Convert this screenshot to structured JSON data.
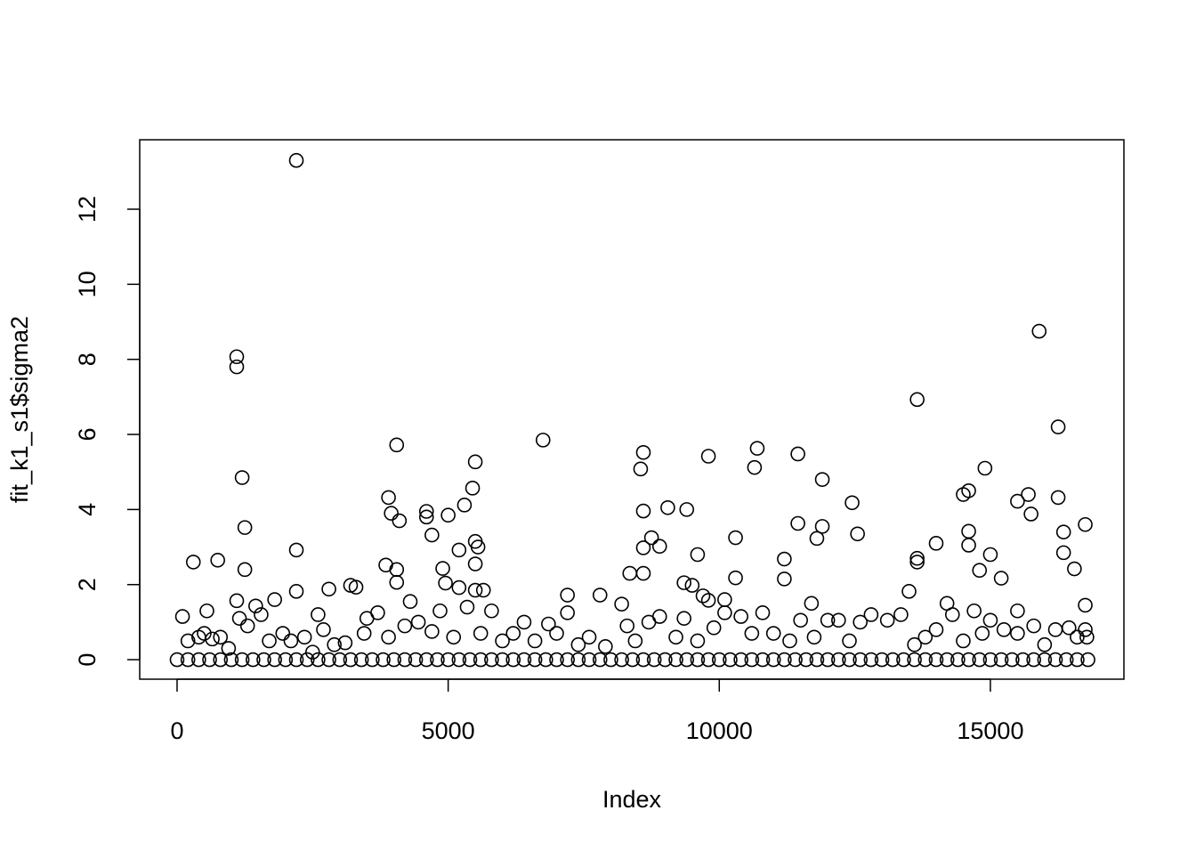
{
  "chart_data": {
    "type": "scatter",
    "x_label": "Index",
    "y_label": "fit_k1_s1$sigma2",
    "xlim": [
      -689,
      17463
    ],
    "ylim": [
      -0.52,
      13.85
    ],
    "xticks": [
      0,
      5000,
      10000,
      15000
    ],
    "yticks": [
      0,
      2,
      4,
      6,
      8,
      10,
      12
    ],
    "color": "#000000",
    "marker": "open-circle",
    "series": [
      {
        "x": [
          2200,
          1100,
          1100,
          15900,
          13650,
          16250,
          6750,
          4050,
          8600,
          8550,
          9800,
          10700,
          10650,
          11450,
          5500,
          5450,
          14900,
          1200,
          11900,
          14500,
          14600,
          15700,
          15500,
          15750,
          16250,
          3900,
          3950,
          4100,
          12450,
          9050,
          9400,
          8600,
          4600,
          4600,
          4700,
          5000,
          5300,
          11450,
          11900,
          11800,
          16750,
          1250,
          12550,
          14600,
          14600,
          16350,
          10300,
          8750,
          8900,
          8600,
          5500,
          5550,
          5200,
          2200,
          14000,
          13650,
          13650,
          15000,
          16350,
          9600,
          11200,
          300,
          750,
          3850,
          4050,
          1250,
          4900,
          5500,
          14800,
          16550,
          8350,
          8600,
          10300,
          11200,
          15200,
          9350,
          9500,
          4950,
          4050,
          5200,
          5500,
          5650,
          2200,
          3200,
          3300,
          2800,
          13500,
          1100,
          1800,
          1450,
          7200,
          7800,
          9700,
          9800,
          10100,
          11700,
          14200,
          16750,
          8200,
          100,
          550,
          2600,
          7200,
          15500
        ],
        "y": [
          13.3,
          8.07,
          7.8,
          8.75,
          6.93,
          6.2,
          5.85,
          5.72,
          5.52,
          5.08,
          5.42,
          5.63,
          5.12,
          5.48,
          5.27,
          4.57,
          5.1,
          4.85,
          4.8,
          4.4,
          4.5,
          4.4,
          4.22,
          3.88,
          4.32,
          4.32,
          3.9,
          3.7,
          4.18,
          4.05,
          4.0,
          3.96,
          3.95,
          3.8,
          3.32,
          3.85,
          4.12,
          3.63,
          3.55,
          3.23,
          3.6,
          3.52,
          3.35,
          3.42,
          3.05,
          3.4,
          3.25,
          3.25,
          3.02,
          2.98,
          3.15,
          3.0,
          2.92,
          2.92,
          3.1,
          2.7,
          2.6,
          2.8,
          2.85,
          2.8,
          2.68,
          2.6,
          2.65,
          2.52,
          2.4,
          2.4,
          2.43,
          2.55,
          2.38,
          2.42,
          2.3,
          2.3,
          2.18,
          2.15,
          2.17,
          2.05,
          1.98,
          2.04,
          2.06,
          1.92,
          1.85,
          1.85,
          1.82,
          1.98,
          1.93,
          1.88,
          1.82,
          1.57,
          1.6,
          1.43,
          1.72,
          1.72,
          1.7,
          1.58,
          1.6,
          1.5,
          1.5,
          1.45,
          1.48,
          1.15,
          1.3,
          1.2,
          1.25,
          1.3
        ]
      },
      {
        "x": [
          200,
          400,
          500,
          650,
          800,
          950,
          1150,
          1300,
          1550,
          1700,
          1950,
          2100,
          2350,
          2500,
          2700,
          2900,
          3100,
          3450,
          3500,
          3700,
          3900,
          4200,
          4300,
          4450,
          4700,
          4850,
          5100,
          5350,
          5600,
          5800,
          6000,
          6200,
          6400,
          6600,
          6850,
          7000,
          7400,
          7600,
          7900,
          8300,
          8450,
          8700,
          8900,
          9200,
          9350,
          9600,
          9900,
          10100,
          10400,
          10600,
          10800,
          11000,
          11300,
          11500,
          11750,
          12000,
          12200,
          12400,
          12600,
          12800,
          13100,
          13350,
          13600,
          13800,
          14000,
          14300,
          14500,
          14700,
          14850,
          15000,
          15250,
          15500,
          15800,
          16000,
          16200,
          16450,
          16600,
          16750,
          16780
        ],
        "y": [
          0.5,
          0.6,
          0.7,
          0.55,
          0.6,
          0.3,
          1.1,
          0.9,
          1.2,
          0.5,
          0.7,
          0.5,
          0.6,
          0.2,
          0.8,
          0.4,
          0.45,
          0.7,
          1.1,
          1.25,
          0.6,
          0.9,
          1.55,
          1.0,
          0.75,
          1.3,
          0.6,
          1.4,
          0.7,
          1.3,
          0.5,
          0.7,
          1.0,
          0.5,
          0.95,
          0.7,
          0.4,
          0.6,
          0.35,
          0.9,
          0.5,
          1.0,
          1.15,
          0.6,
          1.1,
          0.5,
          0.85,
          1.25,
          1.15,
          0.7,
          1.25,
          0.7,
          0.5,
          1.05,
          0.6,
          1.05,
          1.05,
          0.5,
          1.0,
          1.2,
          1.05,
          1.2,
          0.4,
          0.6,
          0.8,
          1.2,
          0.5,
          1.3,
          0.7,
          1.05,
          0.8,
          0.7,
          0.9,
          0.4,
          0.8,
          0.85,
          0.6,
          0.8,
          0.6
        ]
      },
      {
        "x": [
          0,
          200,
          400,
          600,
          800,
          1000,
          1200,
          1400,
          1600,
          1800,
          2000,
          2200,
          2400,
          2600,
          2800,
          3000,
          3200,
          3400,
          3600,
          3800,
          4000,
          4200,
          4400,
          4600,
          4800,
          5000,
          5200,
          5400,
          5600,
          5800,
          6000,
          6200,
          6400,
          6600,
          6800,
          7000,
          7200,
          7400,
          7600,
          7800,
          8000,
          8200,
          8400,
          8600,
          8800,
          9000,
          9200,
          9400,
          9600,
          9800,
          10000,
          10200,
          10400,
          10600,
          10800,
          11000,
          11200,
          11400,
          11600,
          11800,
          12000,
          12200,
          12400,
          12600,
          12800,
          13000,
          13200,
          13400,
          13600,
          13800,
          14000,
          14200,
          14400,
          14600,
          14800,
          15000,
          15200,
          15400,
          15600,
          15800,
          16000,
          16200,
          16400,
          16600,
          16800
        ],
        "y": [
          0,
          0,
          0,
          0,
          0,
          0,
          0,
          0,
          0,
          0,
          0,
          0,
          0,
          0,
          0,
          0,
          0,
          0,
          0,
          0,
          0,
          0,
          0,
          0,
          0,
          0,
          0,
          0,
          0,
          0,
          0,
          0,
          0,
          0,
          0,
          0,
          0,
          0,
          0,
          0,
          0,
          0,
          0,
          0,
          0,
          0,
          0,
          0,
          0,
          0,
          0,
          0,
          0,
          0,
          0,
          0,
          0,
          0,
          0,
          0,
          0,
          0,
          0,
          0,
          0,
          0,
          0,
          0,
          0,
          0,
          0,
          0,
          0,
          0,
          0,
          0,
          0,
          0,
          0,
          0,
          0,
          0,
          0,
          0,
          0
        ]
      }
    ]
  }
}
